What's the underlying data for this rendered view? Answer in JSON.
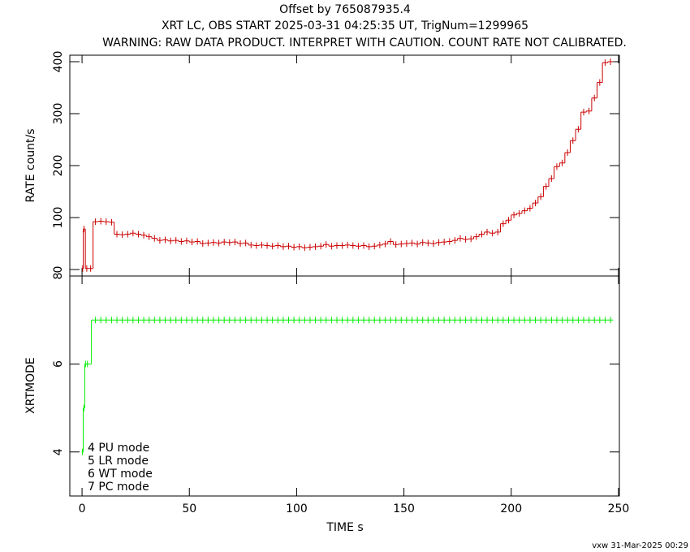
{
  "chart_data": [
    {
      "type": "step",
      "title": "Offset by 765087935.4",
      "subtitle": "XRT LC, OBS START 2025-03-31 04:25:35 UT, TrigNum=1299965",
      "warning": "WARNING: RAW DATA PRODUCT. INTERPRET WITH CAUTION. COUNT RATE NOT CALIBRATED.",
      "ylabel": "RATE  count/s",
      "xlim": [
        -5.7,
        250.4
      ],
      "ylim": [
        -12.5,
        412.5
      ],
      "yticks": [
        0,
        100,
        200,
        300,
        400
      ],
      "series": [
        {
          "name": "RATE",
          "color": "#cc0000",
          "x": [
            0.3,
            0.9,
            2.2,
            4,
            6.25,
            8.75,
            11.25,
            13.75,
            16.25,
            18.75,
            21.25,
            23.75,
            26.25,
            28.75,
            31.25,
            33.75,
            36.25,
            38.75,
            41.25,
            43.75,
            46.25,
            48.75,
            51.25,
            53.75,
            56.25,
            58.75,
            61.25,
            63.75,
            66.25,
            68.75,
            71.25,
            73.75,
            76.25,
            78.75,
            81.25,
            83.75,
            86.25,
            88.75,
            91.25,
            93.75,
            96.25,
            98.75,
            101.25,
            103.75,
            106.25,
            108.75,
            111.25,
            113.75,
            116.25,
            118.75,
            121.25,
            123.75,
            126.25,
            128.75,
            131.25,
            133.75,
            136.25,
            138.75,
            141.25,
            143.75,
            146.25,
            148.75,
            151.25,
            153.75,
            156.25,
            158.75,
            161.25,
            163.75,
            166.25,
            168.75,
            171.25,
            173.75,
            176.25,
            178.75,
            181.25,
            183.75,
            186.25,
            188.75,
            191.25,
            193.75,
            196.25,
            198.75,
            201.25,
            203.75,
            206.25,
            208.75,
            211.25,
            213.75,
            216.25,
            218.75,
            221.25,
            223.75,
            226.25,
            228.75,
            231.25,
            233.75,
            236.25,
            238.75,
            241.25,
            243.75,
            246.25
          ],
          "values": [
            2,
            78,
            2,
            2,
            92,
            93,
            92,
            91,
            68,
            67,
            68,
            70,
            68,
            66,
            63,
            60,
            56,
            57,
            55,
            56,
            54,
            55,
            53,
            54,
            50,
            51,
            52,
            51,
            53,
            52,
            53,
            50,
            51,
            47,
            46,
            47,
            46,
            45,
            46,
            44,
            45,
            43,
            44,
            42,
            43,
            44,
            45,
            48,
            45,
            46,
            46,
            47,
            46,
            45,
            46,
            44,
            45,
            47,
            49,
            54,
            48,
            49,
            50,
            51,
            49,
            52,
            51,
            50,
            52,
            53,
            54,
            56,
            60,
            58,
            59,
            63,
            68,
            72,
            70,
            72,
            88,
            95,
            105,
            108,
            113,
            118,
            128,
            140,
            160,
            175,
            198,
            205,
            225,
            248,
            270,
            303,
            305,
            330,
            360,
            398,
            400
          ]
        }
      ]
    },
    {
      "type": "step",
      "ylabel": "XRTMODE",
      "xlabel": "TIME  s",
      "xlim": [
        -5.7,
        250.4
      ],
      "xticks": [
        0,
        50,
        100,
        150,
        200,
        250
      ],
      "ylim": [
        3,
        8
      ],
      "yticks": [
        4,
        6,
        8
      ],
      "notes": [
        "4 PU mode",
        "5 LR mode",
        "6 WT mode",
        "7 PC mode"
      ],
      "footer": "vxw 31-Mar-2025 00:29",
      "series": [
        {
          "name": "XRTMODE",
          "color": "#00ee00",
          "x": [
            0.2,
            0.9,
            1.6,
            2.5,
            6.25,
            8.75,
            11.25,
            13.75,
            16.25,
            18.75,
            21.25,
            23.75,
            26.25,
            28.75,
            31.25,
            33.75,
            36.25,
            38.75,
            41.25,
            43.75,
            46.25,
            48.75,
            51.25,
            53.75,
            56.25,
            58.75,
            61.25,
            63.75,
            66.25,
            68.75,
            71.25,
            73.75,
            76.25,
            78.75,
            81.25,
            83.75,
            86.25,
            88.75,
            91.25,
            93.75,
            96.25,
            98.75,
            101.25,
            103.75,
            106.25,
            108.75,
            111.25,
            113.75,
            116.25,
            118.75,
            121.25,
            123.75,
            126.25,
            128.75,
            131.25,
            133.75,
            136.25,
            138.75,
            141.25,
            143.75,
            146.25,
            148.75,
            151.25,
            153.75,
            156.25,
            158.75,
            161.25,
            163.75,
            166.25,
            168.75,
            171.25,
            173.75,
            176.25,
            178.75,
            181.25,
            183.75,
            186.25,
            188.75,
            191.25,
            193.75,
            196.25,
            198.75,
            201.25,
            203.75,
            206.25,
            208.75,
            211.25,
            213.75,
            216.25,
            218.75,
            221.25,
            223.75,
            226.25,
            228.75,
            231.25,
            233.75,
            236.25,
            238.75,
            241.25,
            243.75,
            246.25
          ],
          "values": [
            4,
            5,
            6,
            6,
            7,
            7,
            7,
            7,
            7,
            7,
            7,
            7,
            7,
            7,
            7,
            7,
            7,
            7,
            7,
            7,
            7,
            7,
            7,
            7,
            7,
            7,
            7,
            7,
            7,
            7,
            7,
            7,
            7,
            7,
            7,
            7,
            7,
            7,
            7,
            7,
            7,
            7,
            7,
            7,
            7,
            7,
            7,
            7,
            7,
            7,
            7,
            7,
            7,
            7,
            7,
            7,
            7,
            7,
            7,
            7,
            7,
            7,
            7,
            7,
            7,
            7,
            7,
            7,
            7,
            7,
            7,
            7,
            7,
            7,
            7,
            7,
            7,
            7,
            7,
            7,
            7,
            7,
            7,
            7,
            7,
            7,
            7,
            7,
            7,
            7,
            7,
            7,
            7,
            7,
            7,
            7,
            7,
            7,
            7,
            7,
            7
          ]
        }
      ]
    }
  ]
}
